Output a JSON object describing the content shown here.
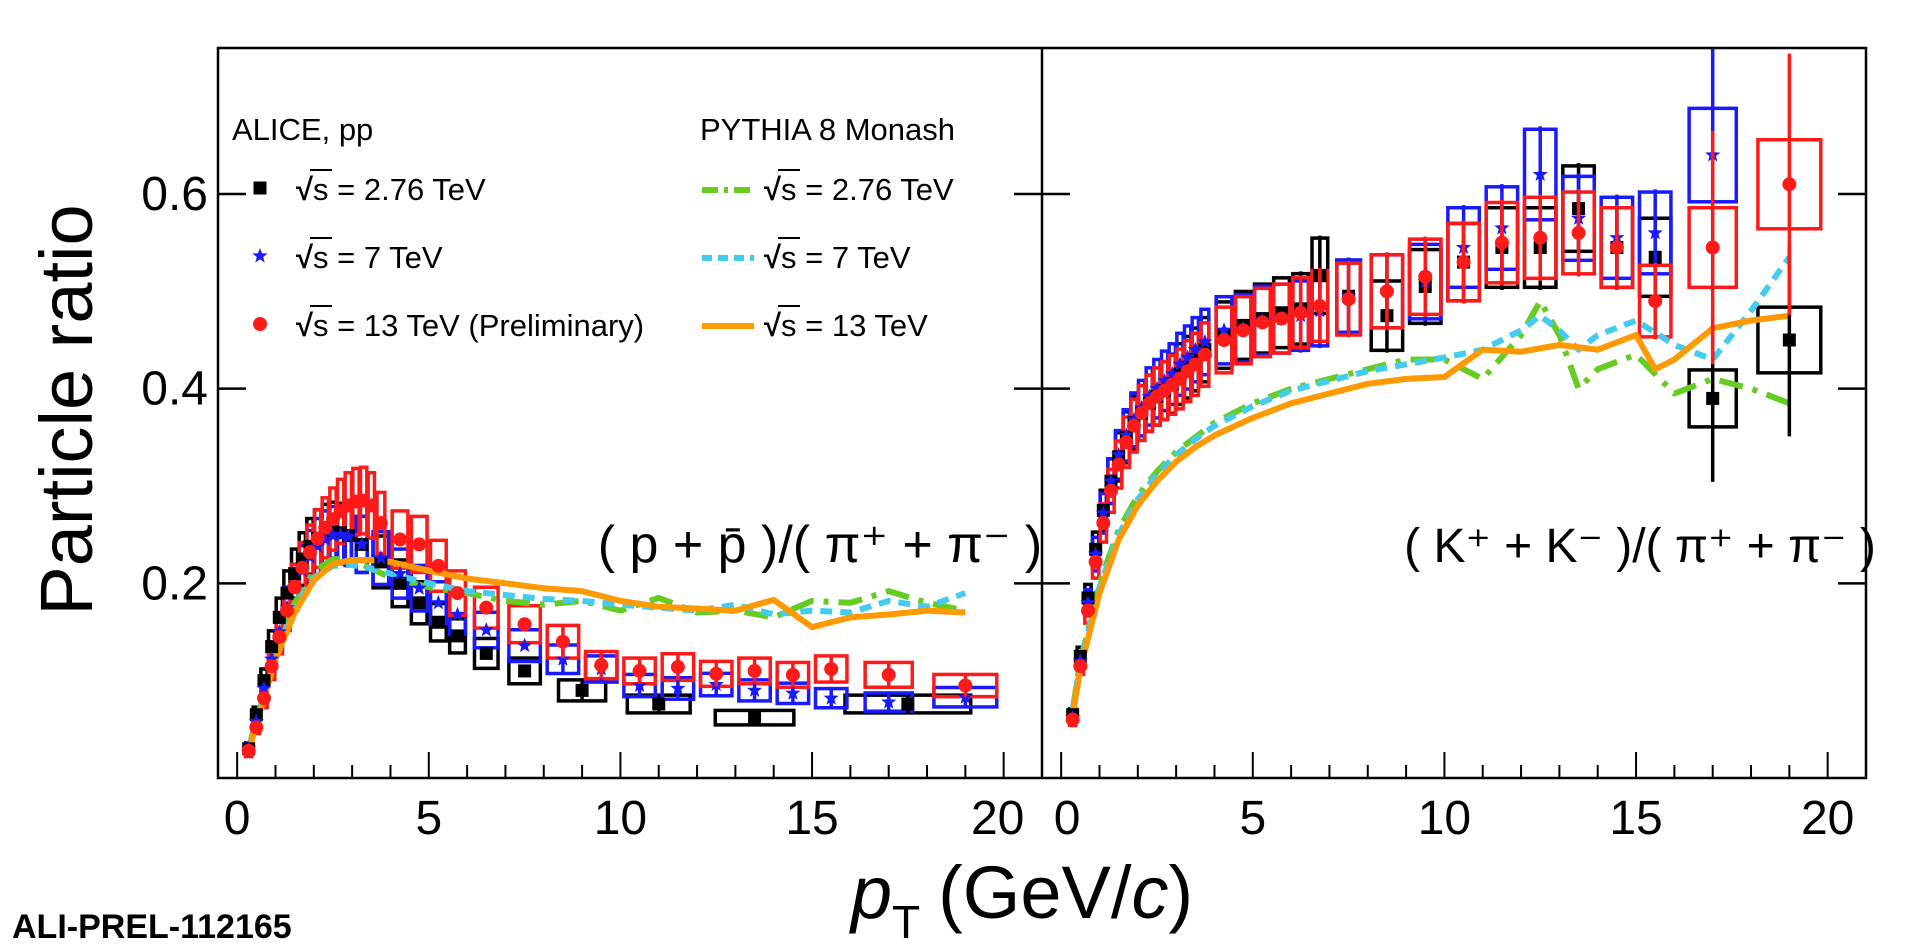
{
  "chart_data": {
    "type": "scatter",
    "ylabel": "Particle ratio",
    "xlabel_symbol": "p",
    "xlabel_sub": "T",
    "xlabel_unit_open": "(GeV/",
    "xlabel_unit_c": "c",
    "xlabel_unit_close": ")",
    "xlim": [
      -0.5,
      21
    ],
    "ylim": [
      0,
      0.75
    ],
    "yticks": [
      "0.2",
      "0.4",
      "0.6"
    ],
    "xticks": [
      "0",
      "5",
      "10",
      "15",
      "20"
    ],
    "watermark": "ALI-PREL-112165",
    "legend": {
      "data_header": "ALICE, pp",
      "model_header": "PYTHIA 8 Monash",
      "entries": [
        {
          "sqrt": "√",
          "text": "s = 2.76 TeV"
        },
        {
          "sqrt": "√",
          "text": "s = 7 TeV"
        },
        {
          "sqrt": "√",
          "text": "s = 13 TeV (Preliminary)"
        },
        {
          "sqrt": "√",
          "text": "s = 2.76 TeV"
        },
        {
          "sqrt": "√",
          "text": "s = 7 TeV"
        },
        {
          "sqrt": "√",
          "text": "s = 13 TeV"
        }
      ]
    },
    "colors": {
      "e276": "#000000",
      "e7": "#1a1aff",
      "e13": "#ff1a1a",
      "p276": "#66cc22",
      "p7": "#44ccf0",
      "p13": "#ff9900"
    },
    "panels": [
      {
        "id": "p-over-pi",
        "label": "( p + p̄ )/( π⁺ + π⁻ )",
        "data": {
          "e276": {
            "x": [
              0.3,
              0.5,
              0.7,
              0.9,
              1.1,
              1.3,
              1.5,
              1.7,
              1.9,
              2.1,
              2.3,
              2.5,
              2.7,
              2.9,
              3.25,
              3.75,
              4.25,
              4.75,
              5.25,
              5.75,
              6.5,
              7.5,
              9.0,
              11.0,
              13.5,
              17.5
            ],
            "y": [
              0.03,
              0.065,
              0.1,
              0.135,
              0.165,
              0.19,
              0.21,
              0.225,
              0.238,
              0.246,
              0.251,
              0.253,
              0.252,
              0.249,
              0.24,
              0.222,
              0.2,
              0.18,
              0.16,
              0.146,
              0.128,
              0.11,
              0.09,
              0.076,
              0.062,
              0.076
            ]
          },
          "e7": {
            "x": [
              0.3,
              0.5,
              0.7,
              0.9,
              1.1,
              1.3,
              1.5,
              1.7,
              1.9,
              2.1,
              2.3,
              2.5,
              2.7,
              2.9,
              3.25,
              3.75,
              4.25,
              4.75,
              5.25,
              5.75,
              6.5,
              7.5,
              8.5,
              9.5,
              10.5,
              11.5,
              12.5,
              13.5,
              14.5,
              15.5,
              17.0,
              19.0
            ],
            "y": [
              0.03,
              0.058,
              0.092,
              0.122,
              0.15,
              0.175,
              0.196,
              0.213,
              0.227,
              0.238,
              0.245,
              0.249,
              0.25,
              0.248,
              0.24,
              0.226,
              0.21,
              0.195,
              0.18,
              0.168,
              0.152,
              0.136,
              0.122,
              0.112,
              0.095,
              0.092,
              0.096,
              0.09,
              0.087,
              0.082,
              0.078,
              0.083
            ]
          },
          "e13": {
            "x": [
              0.3,
              0.5,
              0.7,
              0.9,
              1.1,
              1.3,
              1.5,
              1.7,
              1.9,
              2.1,
              2.3,
              2.5,
              2.7,
              2.9,
              3.1,
              3.3,
              3.5,
              3.75,
              4.25,
              4.75,
              5.25,
              5.75,
              6.5,
              7.5,
              8.5,
              9.5,
              10.5,
              11.5,
              12.5,
              13.5,
              14.5,
              15.5,
              17.0,
              19.0
            ],
            "y": [
              0.028,
              0.052,
              0.082,
              0.115,
              0.145,
              0.172,
              0.196,
              0.216,
              0.232,
              0.246,
              0.257,
              0.266,
              0.274,
              0.28,
              0.284,
              0.285,
              0.28,
              0.262,
              0.245,
              0.24,
              0.218,
              0.19,
              0.175,
              0.158,
              0.14,
              0.116,
              0.11,
              0.114,
              0.107,
              0.11,
              0.106,
              0.112,
              0.106,
              0.095
            ]
          },
          "p276": {
            "x": [
              0.3,
              0.5,
              1.0,
              1.5,
              2.0,
              2.5,
              3.0,
              3.5,
              4.0,
              5.0,
              6.0,
              7.0,
              8.0,
              9.0,
              10.0,
              11.0,
              12.0,
              13.0,
              14.0,
              15.0,
              16.0,
              17.0,
              18.0,
              19.0
            ],
            "y": [
              0.03,
              0.06,
              0.13,
              0.18,
              0.212,
              0.225,
              0.224,
              0.215,
              0.206,
              0.196,
              0.19,
              0.182,
              0.178,
              0.182,
              0.172,
              0.185,
              0.17,
              0.172,
              0.165,
              0.182,
              0.18,
              0.192,
              0.18,
              0.172
            ]
          },
          "p7": {
            "x": [
              0.3,
              0.5,
              1.0,
              1.5,
              2.0,
              2.5,
              3.0,
              3.5,
              4.0,
              5.0,
              6.0,
              7.0,
              8.0,
              9.0,
              10.0,
              11.0,
              12.0,
              13.0,
              14.0,
              15.0,
              16.0,
              17.0,
              18.0,
              19.0
            ],
            "y": [
              0.03,
              0.058,
              0.128,
              0.176,
              0.206,
              0.218,
              0.219,
              0.215,
              0.21,
              0.2,
              0.192,
              0.188,
              0.184,
              0.182,
              0.178,
              0.175,
              0.172,
              0.178,
              0.168,
              0.172,
              0.17,
              0.182,
              0.176,
              0.19
            ]
          },
          "p13": {
            "x": [
              0.3,
              0.5,
              1.0,
              1.5,
              2.0,
              2.5,
              3.0,
              3.5,
              4.0,
              5.0,
              6.0,
              7.0,
              8.0,
              9.0,
              10.0,
              11.0,
              12.0,
              13.0,
              14.0,
              15.0,
              16.0,
              17.0,
              18.0,
              19.0
            ],
            "y": [
              0.028,
              0.055,
              0.122,
              0.17,
              0.203,
              0.22,
              0.224,
              0.224,
              0.222,
              0.213,
              0.205,
              0.2,
              0.195,
              0.192,
              0.182,
              0.176,
              0.174,
              0.172,
              0.183,
              0.155,
              0.165,
              0.168,
              0.172,
              0.17
            ]
          }
        }
      },
      {
        "id": "k-over-pi",
        "label": "( K⁺ + K⁻ )/( π⁺ + π⁻ )",
        "data": {
          "e276": {
            "x": [
              0.3,
              0.5,
              0.7,
              0.9,
              1.1,
              1.3,
              1.5,
              1.7,
              1.9,
              2.1,
              2.3,
              2.5,
              2.7,
              2.9,
              3.1,
              3.3,
              3.5,
              3.75,
              4.25,
              4.75,
              5.25,
              5.75,
              6.25,
              6.75,
              7.5,
              8.5,
              9.5,
              10.5,
              11.5,
              12.5,
              13.5,
              14.5,
              15.5,
              17.0,
              19.0
            ],
            "y": [
              0.065,
              0.125,
              0.185,
              0.235,
              0.275,
              0.305,
              0.33,
              0.35,
              0.365,
              0.375,
              0.385,
              0.392,
              0.398,
              0.405,
              0.415,
              0.422,
              0.43,
              0.44,
              0.455,
              0.465,
              0.472,
              0.478,
              0.482,
              0.516,
              0.495,
              0.475,
              0.505,
              0.53,
              0.545,
              0.545,
              0.585,
              0.545,
              0.535,
              0.39,
              0.45
            ]
          },
          "e7": {
            "x": [
              0.3,
              0.5,
              0.7,
              0.9,
              1.1,
              1.3,
              1.5,
              1.7,
              1.9,
              2.1,
              2.3,
              2.5,
              2.7,
              2.9,
              3.1,
              3.3,
              3.5,
              3.75,
              4.25,
              4.75,
              5.25,
              5.75,
              6.25,
              6.75,
              7.5,
              8.5,
              9.5,
              10.5,
              11.5,
              12.5,
              13.5,
              14.5,
              15.5,
              17.0
            ],
            "y": [
              0.062,
              0.12,
              0.18,
              0.23,
              0.272,
              0.305,
              0.332,
              0.352,
              0.368,
              0.38,
              0.392,
              0.4,
              0.408,
              0.415,
              0.425,
              0.432,
              0.44,
              0.448,
              0.46,
              0.462,
              0.47,
              0.472,
              0.475,
              0.48,
              0.495,
              0.5,
              0.51,
              0.545,
              0.565,
              0.62,
              0.575,
              0.555,
              0.56,
              0.64
            ]
          },
          "e13": {
            "x": [
              0.3,
              0.5,
              0.7,
              0.9,
              1.1,
              1.3,
              1.5,
              1.7,
              1.9,
              2.1,
              2.3,
              2.5,
              2.7,
              2.9,
              3.1,
              3.3,
              3.5,
              3.75,
              4.25,
              4.75,
              5.25,
              5.75,
              6.25,
              6.75,
              7.5,
              8.5,
              9.5,
              10.5,
              11.5,
              12.5,
              13.5,
              14.5,
              15.5,
              17.0,
              19.0
            ],
            "y": [
              0.06,
              0.115,
              0.172,
              0.222,
              0.262,
              0.295,
              0.322,
              0.345,
              0.362,
              0.375,
              0.385,
              0.392,
              0.398,
              0.404,
              0.41,
              0.418,
              0.425,
              0.435,
              0.45,
              0.46,
              0.468,
              0.472,
              0.478,
              0.485,
              0.492,
              0.5,
              0.515,
              0.53,
              0.55,
              0.555,
              0.56,
              0.545,
              0.49,
              0.545,
              0.61
            ]
          },
          "p276": {
            "x": [
              0.3,
              0.5,
              1.0,
              1.5,
              2.0,
              2.5,
              3.0,
              3.5,
              4.0,
              5.0,
              6.0,
              7.0,
              8.0,
              9.0,
              10.0,
              11.0,
              12.0,
              12.5,
              13.0,
              13.5,
              14.0,
              15.0,
              16.0,
              17.0,
              18.0,
              19.0
            ],
            "y": [
              0.07,
              0.12,
              0.2,
              0.255,
              0.29,
              0.315,
              0.335,
              0.35,
              0.365,
              0.385,
              0.4,
              0.41,
              0.42,
              0.43,
              0.43,
              0.41,
              0.455,
              0.49,
              0.455,
              0.4,
              0.42,
              0.435,
              0.395,
              0.41,
              0.4,
              0.385
            ]
          },
          "p7": {
            "x": [
              0.3,
              0.5,
              1.0,
              1.5,
              2.0,
              2.5,
              3.0,
              3.5,
              4.0,
              5.0,
              6.0,
              7.0,
              8.0,
              9.0,
              10.0,
              11.0,
              12.0,
              12.5,
              13.0,
              13.5,
              14.0,
              15.0,
              16.0,
              17.0,
              18.0,
              19.0
            ],
            "y": [
              0.07,
              0.118,
              0.196,
              0.25,
              0.286,
              0.312,
              0.332,
              0.348,
              0.362,
              0.382,
              0.398,
              0.408,
              0.418,
              0.425,
              0.432,
              0.44,
              0.46,
              0.475,
              0.46,
              0.44,
              0.455,
              0.47,
              0.445,
              0.43,
              0.48,
              0.535
            ]
          },
          "p13": {
            "x": [
              0.3,
              0.5,
              1.0,
              1.5,
              2.0,
              2.5,
              3.0,
              3.5,
              4.0,
              5.0,
              6.0,
              7.0,
              8.0,
              9.0,
              10.0,
              11.0,
              12.0,
              13.0,
              14.0,
              15.0,
              15.5,
              16.0,
              17.0,
              18.0,
              19.0
            ],
            "y": [
              0.065,
              0.112,
              0.19,
              0.245,
              0.28,
              0.305,
              0.325,
              0.34,
              0.352,
              0.37,
              0.385,
              0.395,
              0.405,
              0.41,
              0.412,
              0.44,
              0.438,
              0.445,
              0.44,
              0.455,
              0.42,
              0.43,
              0.462,
              0.47,
              0.475
            ]
          }
        }
      }
    ]
  }
}
